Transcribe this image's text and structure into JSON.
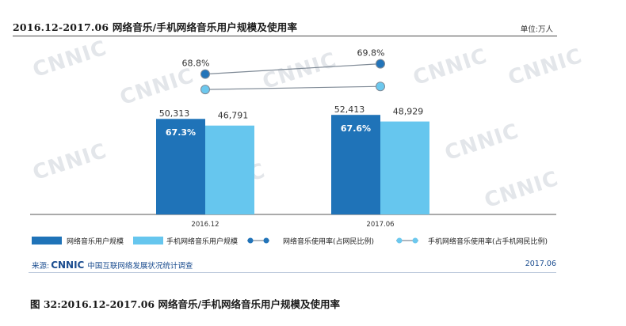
{
  "title": "2016.12-2017.06 网络音乐/手机网络音乐用户规模及使用率",
  "unit": "单位:万人",
  "watermark": "CNNIC",
  "source": {
    "prefix": "来源:",
    "logo": "CNNIC",
    "text": "中国互联网络发展状况统计调查"
  },
  "date": "2017.06",
  "caption": "图 32:2016.12-2017.06 网络音乐/手机网络音乐用户规模及使用率",
  "colors": {
    "dark_bar": "#1f73b8",
    "light_bar": "#66c6ee",
    "line": "#7f8a96",
    "dot_dark": "#2274b9",
    "dot_light": "#6cc8ee"
  },
  "chart_data": {
    "type": "bar",
    "categories": [
      "2016.12",
      "2017.06"
    ],
    "series": [
      {
        "name": "网络音乐用户规模",
        "kind": "bar",
        "values": [
          50313,
          52413
        ],
        "value_labels": [
          "50,313",
          "52,413"
        ],
        "inner_labels": [
          "67.3%",
          "67.6%"
        ]
      },
      {
        "name": "手机网络音乐用户规模",
        "kind": "bar",
        "values": [
          46791,
          48929
        ],
        "value_labels": [
          "46,791",
          "48,929"
        ]
      },
      {
        "name": "网络音乐使用率(占网民比例)",
        "kind": "line",
        "values": [
          68.8,
          69.8
        ],
        "value_labels": [
          "68.8%",
          "69.8%"
        ]
      },
      {
        "name": "手机网络音乐使用率(占手机网民比例)",
        "kind": "line",
        "values": [
          67.3,
          67.6
        ]
      }
    ],
    "legend_position": "bottom",
    "grid": false
  }
}
